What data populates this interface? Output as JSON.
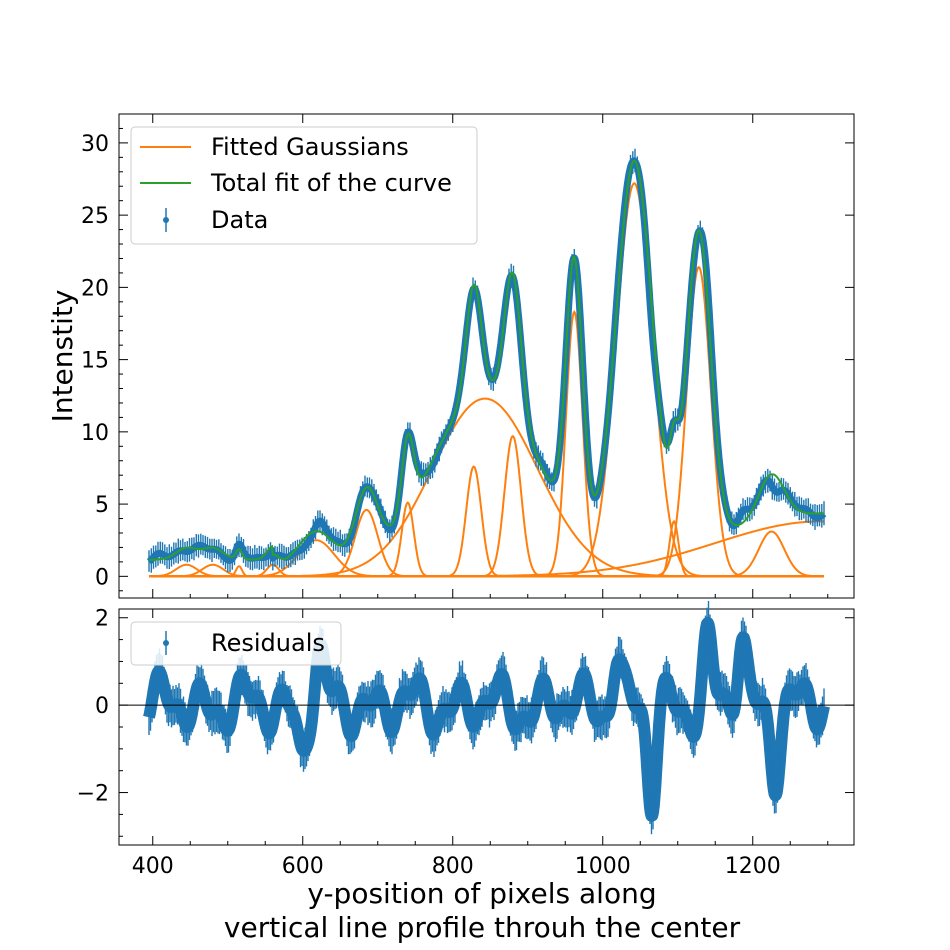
{
  "chart_data": [
    {
      "type": "line",
      "ylabel": "Intenstity",
      "xlim": [
        355,
        1335
      ],
      "ylim": [
        -1.5,
        32
      ],
      "yticks": [
        0,
        5,
        10,
        15,
        20,
        25,
        30
      ],
      "xticks": [
        400,
        600,
        800,
        1000,
        1200
      ],
      "legend": {
        "position": "top-left",
        "entries": [
          "Fitted Gaussians",
          "Total fit of the curve",
          "Data"
        ]
      },
      "colors": {
        "data": "#1f77b4",
        "gaussians": "#ff7f0e",
        "total_fit": "#2ca02c"
      },
      "baseline": 1.1,
      "gaussians": [
        {
          "center": 445,
          "amplitude": 0.8,
          "sigma": 14
        },
        {
          "center": 480,
          "amplitude": 0.8,
          "sigma": 14
        },
        {
          "center": 515,
          "amplitude": 0.7,
          "sigma": 4
        },
        {
          "center": 560,
          "amplitude": 0.8,
          "sigma": 8
        },
        {
          "center": 618,
          "amplitude": 2.5,
          "sigma": 24
        },
        {
          "center": 685,
          "amplitude": 4.6,
          "sigma": 15
        },
        {
          "center": 740,
          "amplitude": 5.1,
          "sigma": 8
        },
        {
          "center": 843,
          "amplitude": 12.3,
          "sigma": 70
        },
        {
          "center": 828,
          "amplitude": 7.6,
          "sigma": 10
        },
        {
          "center": 880,
          "amplitude": 9.7,
          "sigma": 11
        },
        {
          "center": 962,
          "amplitude": 18.3,
          "sigma": 11
        },
        {
          "center": 1042,
          "amplitude": 27.2,
          "sigma": 24
        },
        {
          "center": 1095,
          "amplitude": 3.8,
          "sigma": 6
        },
        {
          "center": 1128,
          "amplitude": 21.4,
          "sigma": 16
        },
        {
          "center": 1225,
          "amplitude": 3.1,
          "sigma": 17
        },
        {
          "center": 1290,
          "amplitude": 3.8,
          "sigma": 140
        }
      ],
      "x_range": [
        395,
        1295
      ],
      "data_halfwidth": 0.35
    },
    {
      "type": "line",
      "xlabel": "y-position of pixels along\nvertical line profile throuh the center",
      "xlim": [
        355,
        1335
      ],
      "ylim": [
        -3.2,
        2.2
      ],
      "yticks": [
        -2,
        0,
        2
      ],
      "xticks": [
        400,
        600,
        800,
        1000,
        1200
      ],
      "legend": {
        "position": "top-left",
        "entries": [
          "Residuals"
        ]
      },
      "colors": {
        "residuals": "#1f77b4"
      },
      "residual_features": [
        {
          "x": 622,
          "value": 1.3
        },
        {
          "x": 598,
          "value": -1.25
        },
        {
          "x": 1065,
          "value": -2.9
        },
        {
          "x": 1018,
          "value": 1.6
        },
        {
          "x": 1140,
          "value": 1.8
        },
        {
          "x": 1185,
          "value": 1.9
        },
        {
          "x": 1230,
          "value": -1.7
        }
      ]
    }
  ]
}
